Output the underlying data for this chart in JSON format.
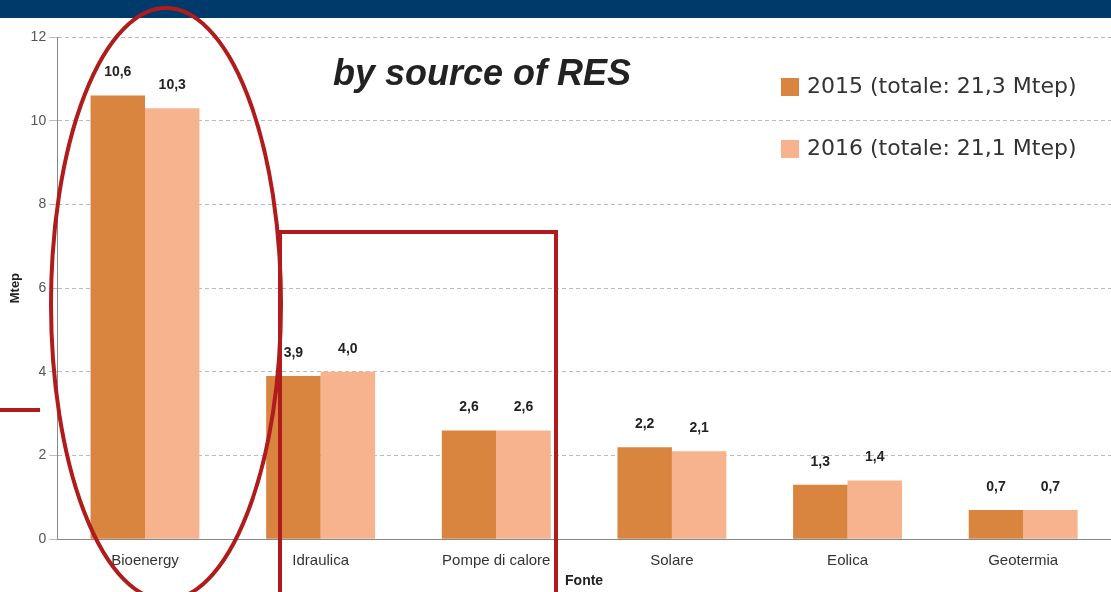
{
  "chart_data": {
    "type": "bar",
    "title": "by source of RES",
    "xlabel": "Fonte",
    "ylabel": "Mtep",
    "categories": [
      "Bioenergy",
      "Idraulica",
      "Pompe di calore",
      "Solare",
      "Eolica",
      "Geotermia"
    ],
    "series": [
      {
        "name": "2015 (totale: 21,3 Mtep)",
        "color": "#d9843f",
        "values": [
          10.6,
          3.9,
          2.6,
          2.2,
          1.3,
          0.7
        ],
        "value_labels": [
          "10,6",
          "3,9",
          "2,6",
          "2,2",
          "1,3",
          "0,7"
        ]
      },
      {
        "name": "2016 (totale: 21,1 Mtep)",
        "color": "#f6b38d",
        "values": [
          10.3,
          4.0,
          2.6,
          2.1,
          1.4,
          0.7
        ],
        "value_labels": [
          "10,3",
          "4,0",
          "2,6",
          "2,1",
          "1,4",
          "0,7"
        ]
      }
    ],
    "ylim": [
      0,
      12
    ],
    "yticks": [
      0,
      2,
      4,
      6,
      8,
      10,
      12
    ],
    "grid": "y",
    "legend": "top right"
  }
}
